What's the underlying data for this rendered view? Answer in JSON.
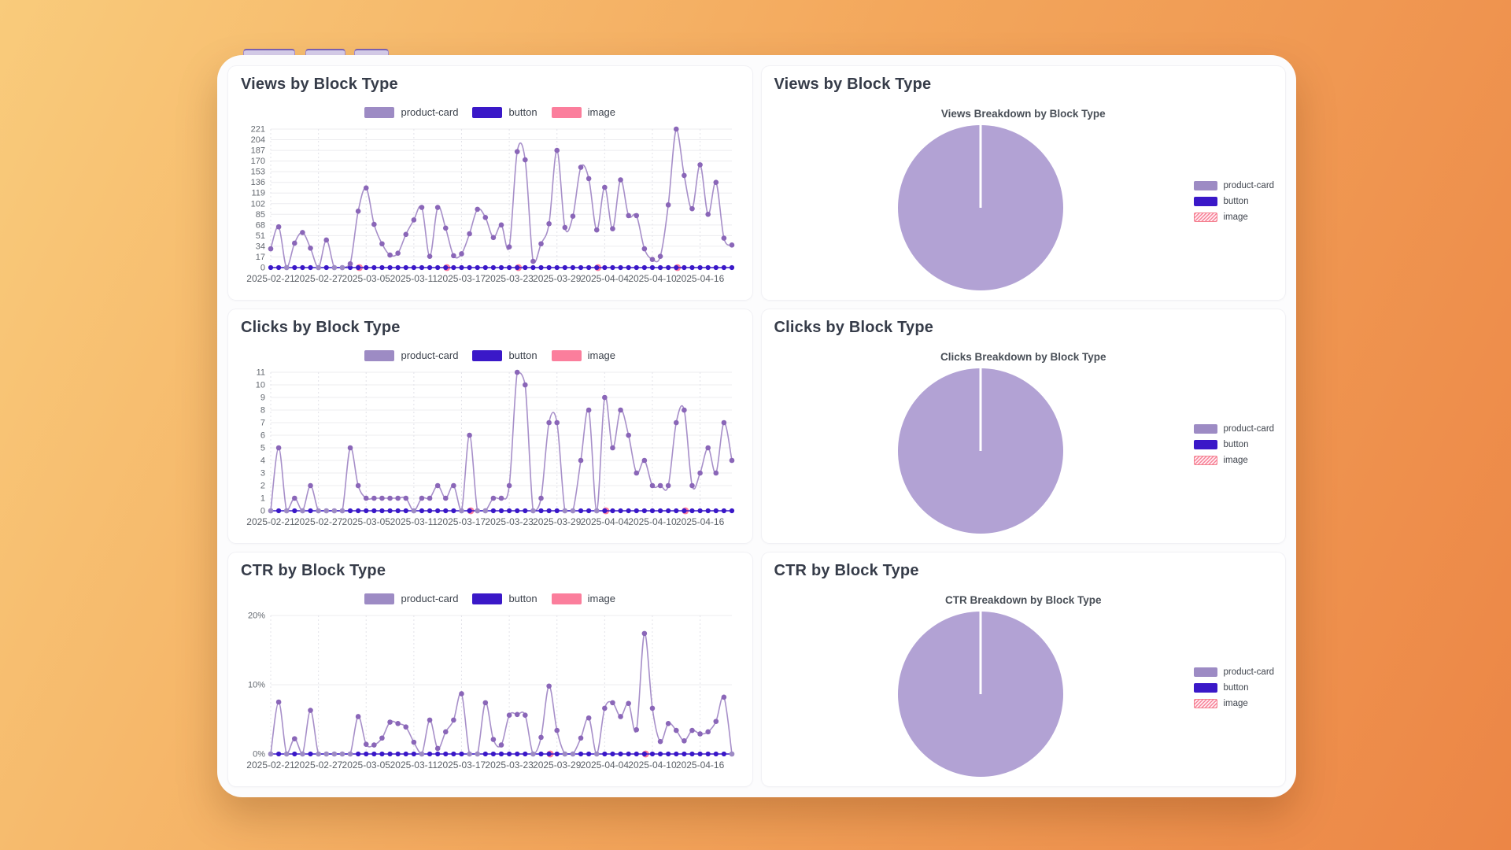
{
  "panels": {
    "views_line": {
      "title": "Views by Block Type"
    },
    "views_pie": {
      "title": "Views by Block Type",
      "inner_title": "Views Breakdown by Block Type"
    },
    "clicks_line": {
      "title": "Clicks by Block Type"
    },
    "clicks_pie": {
      "title": "Clicks by Block Type",
      "inner_title": "Clicks Breakdown by Block Type"
    },
    "ctr_line": {
      "title": "CTR by Block Type"
    },
    "ctr_pie": {
      "title": "CTR by Block Type",
      "inner_title": "CTR Breakdown by Block Type"
    }
  },
  "legend": {
    "items": [
      {
        "label": "product-card",
        "color": "#9d8bc4",
        "pattern_in_pie": false
      },
      {
        "label": "button",
        "color": "#3a18c8",
        "pattern_in_pie": false
      },
      {
        "label": "image",
        "color": "#fb7e9c",
        "pattern_in_pie": true
      }
    ]
  },
  "colors": {
    "line": "#a78fc9",
    "point": "#8a66b8",
    "zero_point": "#9d8bc4",
    "button": "#3a18c8",
    "image": "#fb7e9c",
    "pie_fill": "#b2a2d4",
    "grid": "#ececef",
    "grid_dash": "#e3e3e9",
    "tick_text": "#63686f"
  },
  "chart_data": [
    {
      "type": "line",
      "title": "Views by Block Type",
      "n_points": 59,
      "label_every": 6,
      "x_tick_labels": [
        "2025-02-21",
        "2025-02-27",
        "2025-03-05",
        "2025-03-11",
        "2025-03-17",
        "2025-03-23",
        "2025-03-29",
        "2025-04-04",
        "2025-04-10",
        "2025-04-16"
      ],
      "y_ticks": [
        0,
        17,
        34,
        51,
        68,
        85,
        102,
        119,
        136,
        153,
        170,
        187,
        204,
        221
      ],
      "y_suffix": "",
      "image_peek_indices": [
        11,
        22,
        31,
        41,
        51
      ],
      "series": [
        {
          "name": "product-card",
          "values": [
            30,
            65,
            0,
            39,
            56,
            31,
            0,
            44,
            0,
            0,
            6,
            90,
            127,
            69,
            38,
            20,
            23,
            53,
            76,
            96,
            18,
            96,
            63,
            19,
            22,
            54,
            93,
            80,
            48,
            68,
            33,
            185,
            172,
            10,
            38,
            70,
            187,
            64,
            82,
            160,
            142,
            60,
            128,
            62,
            140,
            83,
            83,
            30,
            13,
            18,
            100,
            221,
            147,
            94,
            164,
            85,
            136,
            47,
            36
          ]
        },
        {
          "name": "button",
          "constant": 0
        },
        {
          "name": "image",
          "constant": 0
        }
      ]
    },
    {
      "type": "pie",
      "title": "Views Breakdown by Block Type",
      "slices": [
        {
          "name": "product-card",
          "share": 100
        },
        {
          "name": "button",
          "share": 0
        },
        {
          "name": "image",
          "share": 0
        }
      ]
    },
    {
      "type": "line",
      "title": "Clicks by Block Type",
      "n_points": 59,
      "label_every": 6,
      "x_tick_labels": [
        "2025-02-21",
        "2025-02-27",
        "2025-03-05",
        "2025-03-11",
        "2025-03-17",
        "2025-03-23",
        "2025-03-29",
        "2025-04-04",
        "2025-04-10",
        "2025-04-16"
      ],
      "y_ticks": [
        0,
        1,
        2,
        3,
        4,
        5,
        6,
        7,
        8,
        9,
        10,
        11
      ],
      "y_suffix": "",
      "image_peek_indices": [
        25,
        42,
        52
      ],
      "series": [
        {
          "name": "product-card",
          "values": [
            0,
            5,
            0,
            1,
            0,
            2,
            0,
            0,
            0,
            0,
            5,
            2,
            1,
            1,
            1,
            1,
            1,
            1,
            0,
            1,
            1,
            2,
            1,
            2,
            0,
            6,
            0,
            0,
            1,
            1,
            2,
            11,
            10,
            0,
            1,
            7,
            7,
            0,
            0,
            4,
            8,
            0,
            9,
            5,
            8,
            6,
            3,
            4,
            2,
            2,
            2,
            7,
            8,
            2,
            3,
            5,
            3,
            7,
            4
          ]
        },
        {
          "name": "button",
          "constant": 0
        },
        {
          "name": "image",
          "constant": 0
        }
      ]
    },
    {
      "type": "pie",
      "title": "Clicks Breakdown by Block Type",
      "slices": [
        {
          "name": "product-card",
          "share": 100
        },
        {
          "name": "button",
          "share": 0
        },
        {
          "name": "image",
          "share": 0
        }
      ]
    },
    {
      "type": "line",
      "title": "CTR by Block Type",
      "n_points": 59,
      "label_every": 6,
      "x_tick_labels": [
        "2025-02-21",
        "2025-02-27",
        "2025-03-05",
        "2025-03-11",
        "2025-03-17",
        "2025-03-23",
        "2025-03-29",
        "2025-04-04",
        "2025-04-10",
        "2025-04-16"
      ],
      "y_ticks": [
        0,
        10,
        20
      ],
      "y_suffix": "%",
      "image_peek_indices": [
        35,
        47
      ],
      "series": [
        {
          "name": "product-card",
          "values": [
            0,
            7.5,
            0,
            2.2,
            0,
            6.3,
            0,
            0,
            0,
            0,
            0,
            5.4,
            1.4,
            1.3,
            2.3,
            4.6,
            4.4,
            3.9,
            1.7,
            0,
            4.9,
            0.8,
            3.2,
            4.9,
            8.7,
            0,
            0,
            7.4,
            2.1,
            1.3,
            5.6,
            5.7,
            5.6,
            0,
            2.4,
            9.8,
            3.4,
            0,
            0,
            2.3,
            5.2,
            0,
            6.6,
            7.4,
            5.4,
            7.3,
            3.5,
            17.4,
            6.6,
            1.8,
            4.4,
            3.4,
            1.9,
            3.4,
            2.9,
            3.2,
            4.7,
            8.2,
            0
          ]
        },
        {
          "name": "button",
          "constant": 0
        },
        {
          "name": "image",
          "constant": 0
        }
      ]
    },
    {
      "type": "pie",
      "title": "CTR Breakdown by Block Type",
      "slices": [
        {
          "name": "product-card",
          "share": 100
        },
        {
          "name": "button",
          "share": 0
        },
        {
          "name": "image",
          "share": 0
        }
      ]
    }
  ]
}
